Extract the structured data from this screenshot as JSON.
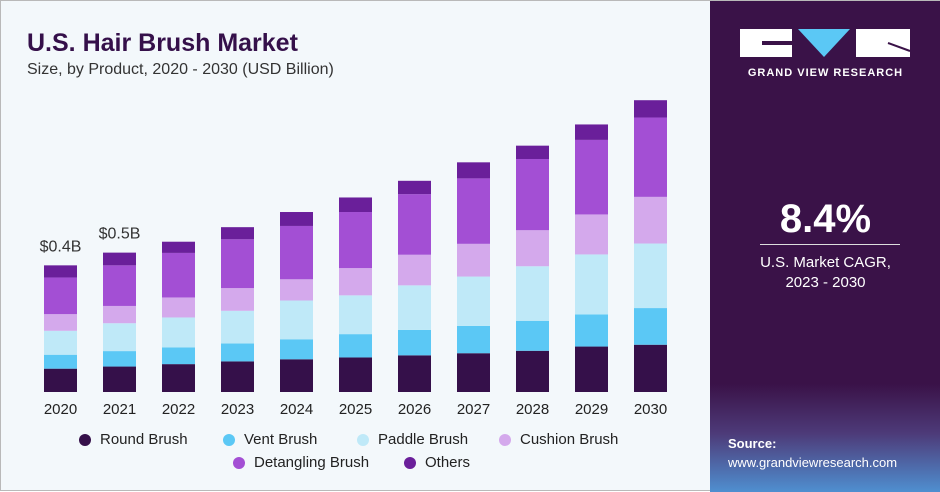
{
  "title": "U.S. Hair Brush Market",
  "subtitle": "Size, by Product, 2020 - 2030 (USD Billion)",
  "brand": {
    "name": "GRAND VIEW RESEARCH",
    "cagr": "8.4%",
    "cagr_label_line1": "U.S. Market CAGR,",
    "cagr_label_line2": "2023 - 2030",
    "source_label": "Source:",
    "source_url": "www.grandviewresearch.com"
  },
  "chart_data": {
    "type": "bar",
    "stacked": true,
    "title": "U.S. Hair Brush Market",
    "subtitle": "Size, by Product, 2020 - 2030 (USD Billion)",
    "categories": [
      "2020",
      "2021",
      "2022",
      "2023",
      "2024",
      "2025",
      "2026",
      "2027",
      "2028",
      "2029",
      "2030"
    ],
    "series": [
      {
        "name": "Round Brush",
        "color": "#35104a",
        "values": [
          0.077,
          0.084,
          0.092,
          0.101,
          0.108,
          0.114,
          0.121,
          0.128,
          0.136,
          0.15,
          0.156
        ]
      },
      {
        "name": "Vent Brush",
        "color": "#5bc8f5",
        "values": [
          0.046,
          0.051,
          0.055,
          0.059,
          0.066,
          0.077,
          0.084,
          0.09,
          0.099,
          0.106,
          0.121
        ]
      },
      {
        "name": "Paddle Brush",
        "color": "#bfe9f8",
        "values": [
          0.079,
          0.092,
          0.099,
          0.108,
          0.128,
          0.128,
          0.147,
          0.163,
          0.18,
          0.198,
          0.213
        ]
      },
      {
        "name": "Cushion Brush",
        "color": "#d4a9ec",
        "values": [
          0.055,
          0.057,
          0.066,
          0.075,
          0.07,
          0.09,
          0.101,
          0.108,
          0.119,
          0.132,
          0.154
        ]
      },
      {
        "name": "Detangling Brush",
        "color": "#a34fd4",
        "values": [
          0.121,
          0.134,
          0.147,
          0.161,
          0.176,
          0.185,
          0.2,
          0.216,
          0.235,
          0.246,
          0.262
        ]
      },
      {
        "name": "Others",
        "color": "#6a1f9a",
        "values": [
          0.04,
          0.042,
          0.037,
          0.04,
          0.046,
          0.048,
          0.044,
          0.053,
          0.044,
          0.051,
          0.057
        ]
      }
    ],
    "annotations": [
      {
        "category": "2020",
        "text": "$0.4B"
      },
      {
        "category": "2021",
        "text": "$0.5B"
      }
    ],
    "legend": "bottom",
    "grid": false,
    "y_axis_visible": false
  }
}
